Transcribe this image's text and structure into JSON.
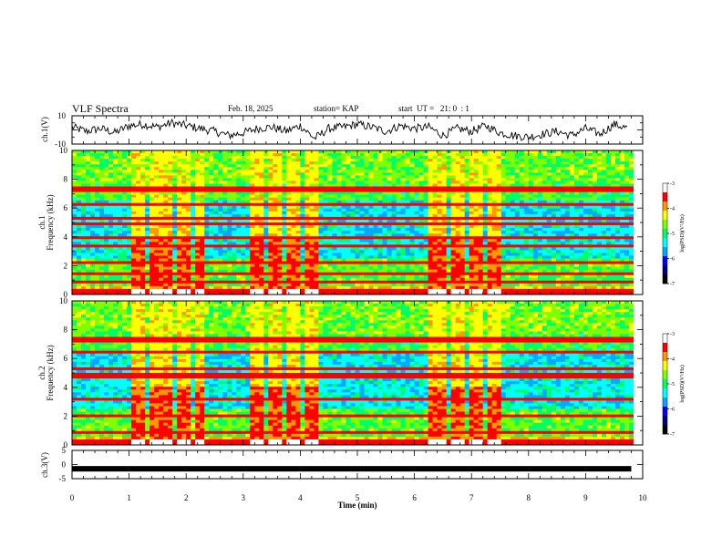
{
  "header": {
    "title": "VLF Spectra",
    "date": "Feb. 18, 2025",
    "station": "station= KAP",
    "start": "start  UT =   21: 0  : 1"
  },
  "chart_data": [
    {
      "type": "line",
      "panel": "ch1-waveform",
      "ylabel": "ch.1(V)",
      "ylim": [
        -10,
        10
      ],
      "yticks": [
        "10",
        "-10"
      ],
      "xlim": [
        0,
        10
      ],
      "note_series": "continuous noisy trace, values mostly between -8 and 8 V",
      "x": [
        0,
        0.25,
        0.5,
        0.75,
        1,
        1.25,
        1.5,
        1.75,
        2,
        2.25,
        2.5,
        2.75,
        3,
        3.25,
        3.5,
        3.75,
        4,
        4.25,
        4.5,
        4.75,
        5,
        5.25,
        5.5,
        5.75,
        6,
        6.25,
        6.5,
        6.75,
        7,
        7.25,
        7.5,
        7.75,
        8,
        8.25,
        8.5,
        8.75,
        9,
        9.25,
        9.5,
        9.75
      ],
      "y": [
        2,
        -1,
        1,
        -2,
        3,
        4,
        2,
        5,
        3,
        1,
        -1,
        -4,
        -2,
        1,
        2,
        -1,
        3,
        -6,
        1,
        2,
        4,
        2,
        -1,
        3,
        1,
        2,
        -4,
        1,
        -1,
        3,
        -2,
        -4,
        -5,
        -3,
        -1,
        -4,
        1,
        -3,
        4,
        1
      ]
    },
    {
      "type": "heatmap",
      "panel": "ch1-spectrogram",
      "ylabel": "Frequency (kHz)",
      "channel": "ch.1",
      "ylim": [
        0,
        10
      ],
      "yticks": [
        "0",
        "2",
        "4",
        "6",
        "8",
        "10"
      ],
      "xlim": [
        0,
        10
      ],
      "colorbar": {
        "label": "log(PSD)(V²/Hz)",
        "range": [
          -7,
          -3
        ],
        "ticks": [
          "-3",
          "-4",
          "-5",
          "-6",
          "-7"
        ]
      },
      "burst_intervals_min": [
        [
          1.05,
          1.25
        ],
        [
          1.35,
          1.5
        ],
        [
          1.55,
          1.75
        ],
        [
          1.8,
          2.05
        ],
        [
          2.15,
          2.35
        ],
        [
          3.1,
          3.35
        ],
        [
          3.45,
          3.65
        ],
        [
          3.75,
          4.0
        ],
        [
          4.05,
          4.3
        ],
        [
          6.25,
          6.55
        ],
        [
          6.65,
          6.9
        ],
        [
          6.95,
          7.2
        ],
        [
          7.25,
          7.5
        ]
      ],
      "tone_lines_khz": [
        0.3,
        0.9,
        1.5,
        2.2,
        3.3,
        4.0,
        4.9,
        5.3,
        6.3,
        7.3
      ]
    },
    {
      "type": "heatmap",
      "panel": "ch2-spectrogram",
      "ylabel": "Frequency (kHz)",
      "channel": "ch.2",
      "ylim": [
        0,
        10
      ],
      "yticks": [
        "0",
        "2",
        "4",
        "6",
        "8",
        "10"
      ],
      "xlim": [
        0,
        10
      ],
      "colorbar": {
        "label": "log(PSD)(V²/Hz)",
        "range": [
          -7,
          -3
        ],
        "ticks": [
          "-3",
          "-4",
          "-5",
          "-6",
          "-7"
        ]
      },
      "burst_intervals_min": [
        [
          1.05,
          1.25
        ],
        [
          1.35,
          1.5
        ],
        [
          1.55,
          1.75
        ],
        [
          1.8,
          2.05
        ],
        [
          2.15,
          2.35
        ],
        [
          3.1,
          3.35
        ],
        [
          3.45,
          3.65
        ],
        [
          3.75,
          4.0
        ],
        [
          4.05,
          4.3
        ],
        [
          6.25,
          6.55
        ],
        [
          6.65,
          6.9
        ],
        [
          6.95,
          7.2
        ],
        [
          7.25,
          7.5
        ]
      ],
      "tone_lines_khz": [
        0.3,
        0.9,
        2.0,
        3.2,
        4.8,
        5.3,
        6.4,
        7.3
      ]
    },
    {
      "type": "line",
      "panel": "ch3-trace",
      "ylabel": "ch.3(V)",
      "ylim": [
        -5,
        5
      ],
      "yticks": [
        "5",
        "0",
        "-5"
      ],
      "xlim": [
        0,
        10
      ],
      "x": [
        0,
        9.8
      ],
      "y": [
        -1.5,
        -1.5
      ]
    }
  ],
  "xaxis": {
    "label": "Time (min)",
    "ticks": [
      "0",
      "1",
      "2",
      "3",
      "4",
      "5",
      "6",
      "7",
      "8",
      "9",
      "10"
    ]
  },
  "colors": {
    "colormap": [
      "#00007a",
      "#0000ff",
      "#00aaff",
      "#00ffff",
      "#00ff66",
      "#7fff00",
      "#ffff00",
      "#ff9900",
      "#ff0000",
      "#ffffff"
    ]
  }
}
